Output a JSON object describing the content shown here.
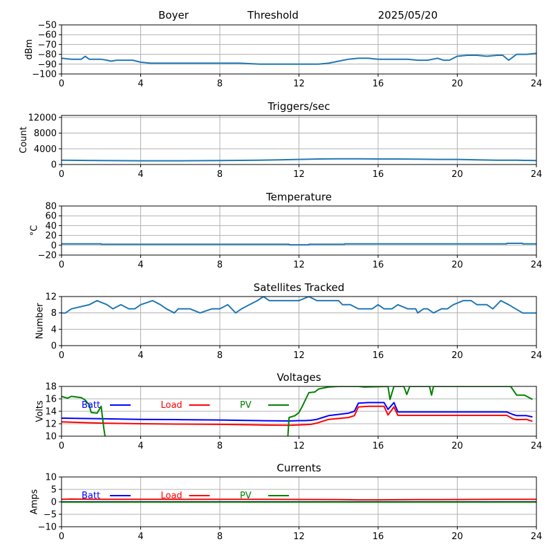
{
  "header": {
    "station": "Boyer",
    "mode": "Threshold",
    "date": "2025/05/20"
  },
  "chart_data": [
    {
      "id": "threshold",
      "type": "line",
      "title": "",
      "xlabel": "",
      "ylabel": "dBm",
      "xlim": [
        0,
        24
      ],
      "ylim": [
        -100,
        -50
      ],
      "xticks": [
        0,
        4,
        8,
        12,
        16,
        20,
        24
      ],
      "yticks": [
        -100,
        -90,
        -80,
        -70,
        -60,
        -50
      ],
      "grid": true,
      "series": [
        {
          "color": "#1f77b4",
          "x": [
            0,
            0.5,
            1,
            1.2,
            1.4,
            2,
            2.3,
            2.5,
            2.8,
            3,
            3.6,
            4,
            4.5,
            6,
            7,
            8,
            9,
            10,
            11,
            12,
            12.5,
            13,
            13.5,
            14,
            14.5,
            15,
            15.5,
            16,
            16.5,
            17,
            17.5,
            18,
            18.5,
            19,
            19.3,
            19.6,
            20,
            20.5,
            21,
            21.5,
            22,
            22.3,
            22.6,
            23,
            23.5,
            24
          ],
          "y": [
            -84,
            -85,
            -85,
            -82,
            -85,
            -85,
            -86,
            -87,
            -86,
            -86,
            -86,
            -88,
            -89,
            -89,
            -89,
            -89,
            -89,
            -90,
            -90,
            -90,
            -90,
            -90,
            -89,
            -87,
            -85,
            -84,
            -84,
            -85,
            -85,
            -85,
            -85,
            -86,
            -86,
            -84,
            -86,
            -86,
            -82,
            -81,
            -81,
            -82,
            -81,
            -81,
            -86,
            -80,
            -80,
            -79
          ]
        }
      ]
    },
    {
      "id": "triggers",
      "type": "line",
      "title": "Triggers/sec",
      "xlabel": "",
      "ylabel": "Count",
      "xlim": [
        0,
        24
      ],
      "ylim": [
        0,
        12500
      ],
      "xticks": [
        0,
        4,
        8,
        12,
        16,
        20,
        24
      ],
      "yticks": [
        0,
        4000,
        8000,
        12000
      ],
      "grid": true,
      "series": [
        {
          "color": "#1f77b4",
          "x": [
            0,
            2,
            4,
            6,
            8,
            10,
            11,
            12,
            13,
            14,
            15,
            16,
            17,
            18,
            19,
            20,
            21,
            22,
            23,
            24
          ],
          "y": [
            1100,
            1000,
            950,
            950,
            1000,
            1100,
            1200,
            1300,
            1400,
            1450,
            1450,
            1400,
            1400,
            1350,
            1300,
            1300,
            1200,
            1100,
            1100,
            1000
          ]
        }
      ]
    },
    {
      "id": "temperature",
      "type": "line",
      "title": "Temperature",
      "xlabel": "",
      "ylabel": "°C",
      "xlim": [
        0,
        24
      ],
      "ylim": [
        -20,
        80
      ],
      "xticks": [
        0,
        4,
        8,
        12,
        16,
        20,
        24
      ],
      "yticks": [
        -20,
        0,
        20,
        40,
        60,
        80
      ],
      "grid": true,
      "series": [
        {
          "color": "#1f77b4",
          "x": [
            0,
            2,
            2.01,
            11.5,
            11.51,
            12.5,
            12.51,
            14.3,
            14.31,
            22.5,
            22.51,
            23.3,
            23.31,
            24
          ],
          "y": [
            3,
            3,
            2,
            2,
            1,
            1,
            2,
            2,
            3,
            3,
            4,
            4,
            3,
            3
          ]
        }
      ]
    },
    {
      "id": "satellites",
      "type": "line",
      "title": "Satellites Tracked",
      "xlabel": "",
      "ylabel": "Number",
      "xlim": [
        0,
        24
      ],
      "ylim": [
        0,
        12
      ],
      "xticks": [
        0,
        4,
        8,
        12,
        16,
        20,
        24
      ],
      "yticks": [
        0,
        4,
        8,
        12
      ],
      "grid": true,
      "series": [
        {
          "color": "#1f77b4",
          "x": [
            0,
            0.2,
            0.5,
            1.4,
            1.8,
            2.3,
            2.6,
            3,
            3.4,
            3.7,
            4,
            4.6,
            5,
            5.3,
            5.7,
            5.9,
            6,
            6.5,
            7,
            7.6,
            8,
            8.4,
            8.8,
            9.1,
            9.5,
            9.9,
            10.2,
            10.5,
            11,
            12,
            12.5,
            12.9,
            13.3,
            14,
            14.2,
            14.6,
            15,
            15.7,
            16,
            16.3,
            16.7,
            17,
            17.5,
            17.9,
            18,
            18.3,
            18.5,
            18.8,
            19.2,
            19.5,
            19.8,
            20.3,
            20.7,
            21,
            21.5,
            21.8,
            22.2,
            22.6,
            23.3,
            24
          ],
          "y": [
            8,
            8,
            9,
            10,
            11,
            10,
            9,
            10,
            9,
            9,
            10,
            11,
            10,
            9,
            8,
            9,
            9,
            9,
            8,
            9,
            9,
            10,
            8,
            9,
            10,
            11,
            12,
            11,
            11,
            11,
            12,
            11,
            11,
            11,
            10,
            10,
            9,
            9,
            10,
            9,
            9,
            10,
            9,
            9,
            8,
            9,
            9,
            8,
            9,
            9,
            10,
            11,
            11,
            10,
            10,
            9,
            11,
            10,
            8,
            8
          ]
        }
      ]
    },
    {
      "id": "voltages",
      "type": "line",
      "title": "Voltages",
      "xlabel": "",
      "ylabel": "Volts",
      "xlim": [
        0,
        24
      ],
      "ylim": [
        10,
        18
      ],
      "xticks": [
        0,
        4,
        8,
        12,
        16,
        20,
        24
      ],
      "yticks": [
        10,
        12,
        14,
        16,
        18
      ],
      "grid": true,
      "series": [
        {
          "name": "Batt",
          "color": "#0000ff",
          "x": [
            0,
            1,
            2,
            4,
            6,
            8,
            10,
            11.5,
            12,
            12.3,
            12.6,
            12.9,
            13.2,
            13.5,
            14,
            14.5,
            14.8,
            15,
            15.5,
            16,
            16.3,
            16.5,
            16.8,
            17,
            17.5,
            18,
            19,
            20,
            21,
            22,
            22.5,
            22.8,
            23,
            23.5,
            23.8
          ],
          "y": [
            12.9,
            12.85,
            12.8,
            12.7,
            12.65,
            12.6,
            12.5,
            12.45,
            12.5,
            12.5,
            12.55,
            12.7,
            13,
            13.3,
            13.5,
            13.7,
            14,
            15.3,
            15.4,
            15.4,
            15.4,
            14.3,
            15.4,
            13.9,
            13.9,
            13.9,
            13.9,
            13.9,
            13.9,
            13.9,
            13.9,
            13.5,
            13.3,
            13.3,
            13.1
          ]
        },
        {
          "name": "Load",
          "color": "#ff0000",
          "x": [
            0,
            1,
            2,
            4,
            6,
            8,
            10,
            11.5,
            12,
            12.3,
            12.6,
            12.9,
            13.2,
            13.5,
            14,
            14.5,
            14.8,
            15,
            15.5,
            16,
            16.3,
            16.5,
            16.8,
            17,
            17.5,
            18,
            19,
            20,
            21,
            22,
            22.5,
            22.8,
            23,
            23.5,
            23.8
          ],
          "y": [
            12.3,
            12.2,
            12.1,
            12,
            11.95,
            11.9,
            11.8,
            11.75,
            11.8,
            11.85,
            11.9,
            12.1,
            12.4,
            12.7,
            12.85,
            13,
            13.3,
            14.7,
            14.8,
            14.8,
            14.8,
            13.4,
            14.7,
            13.35,
            13.35,
            13.35,
            13.35,
            13.35,
            13.35,
            13.35,
            13.35,
            12.8,
            12.65,
            12.7,
            12.4
          ]
        },
        {
          "name": "PV",
          "color": "#008000",
          "x": [
            0,
            0.3,
            0.5,
            1,
            1.2,
            1.4,
            1.5,
            1.8,
            2,
            2.15,
            2.3,
            11.4,
            11.5,
            11.8,
            12,
            12.2,
            12.5,
            12.8,
            13,
            13.5,
            14,
            15,
            15.3,
            16.5,
            16.6,
            16.8,
            17.3,
            17.45,
            17.6,
            18.6,
            18.7,
            18.8,
            22.5,
            22.7,
            23,
            23.4,
            23.8
          ],
          "y": [
            16.4,
            16.1,
            16.4,
            16.2,
            15.8,
            15,
            13.8,
            13.7,
            14.8,
            11,
            8,
            8,
            13,
            13.3,
            13.8,
            15,
            17,
            17.1,
            17.6,
            17.9,
            18,
            18,
            17.9,
            18,
            15.9,
            18,
            18,
            16.7,
            18,
            18,
            16.6,
            18,
            18,
            18,
            16.6,
            16.6,
            15.9
          ]
        }
      ],
      "legend": {
        "placement": "upper-left",
        "entries": [
          "Batt",
          "Load",
          "PV"
        ]
      }
    },
    {
      "id": "currents",
      "type": "line",
      "title": "Currents",
      "xlabel": "",
      "ylabel": "Amps",
      "xlim": [
        0,
        24
      ],
      "ylim": [
        -10,
        10
      ],
      "xticks": [
        0,
        4,
        8,
        12,
        16,
        20,
        24
      ],
      "yticks": [
        -10,
        -5,
        0,
        5,
        10
      ],
      "grid": true,
      "series": [
        {
          "name": "Batt",
          "color": "#0000ff",
          "x": [
            0,
            24
          ],
          "y": [
            0,
            0
          ]
        },
        {
          "name": "Load",
          "color": "#ff0000",
          "x": [
            0,
            0.5,
            2,
            6,
            10,
            14,
            15,
            16,
            18,
            22,
            24
          ],
          "y": [
            1.0,
            1.1,
            1.0,
            1.0,
            1.0,
            0.9,
            0.8,
            0.8,
            0.9,
            1.0,
            1.0
          ]
        },
        {
          "name": "PV",
          "color": "#008000",
          "x": [
            0,
            24
          ],
          "y": [
            -0.1,
            -0.1
          ]
        }
      ],
      "legend": {
        "placement": "upper-left",
        "entries": [
          "Batt",
          "Load",
          "PV"
        ]
      }
    }
  ]
}
